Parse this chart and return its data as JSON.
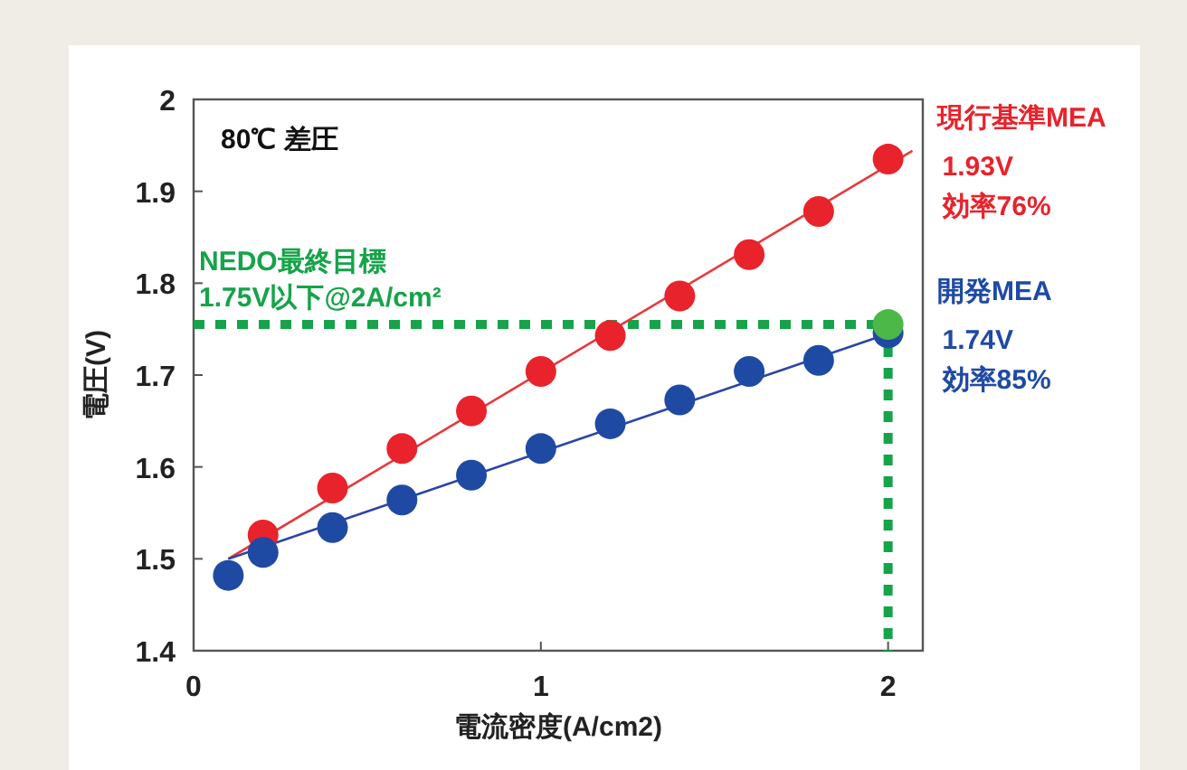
{
  "chart_data": {
    "type": "scatter",
    "xlabel": "電流密度(A/cm2)",
    "ylabel": "電圧(V)",
    "xlim": [
      0,
      2.1
    ],
    "xticks": [
      0,
      1,
      2
    ],
    "ylim": [
      1.4,
      2.0
    ],
    "yticks": [
      1.4,
      1.5,
      1.6,
      1.7,
      1.8,
      1.9,
      2
    ],
    "grid": false,
    "marker": "circle",
    "series": [
      {
        "type": "line",
        "marker": "none",
        "color": "#e8383d",
        "x": [
          0.1,
          2.07
        ],
        "values": [
          1.5,
          1.944
        ]
      },
      {
        "type": "line",
        "marker": "none",
        "color": "#2a45a8",
        "x": [
          0.1,
          2.0
        ],
        "values": [
          1.5,
          1.745
        ]
      },
      {
        "name": "現行基準MEA",
        "color": "#e8232b",
        "x": [
          0.2,
          0.4,
          0.6,
          0.8,
          1.0,
          1.2,
          1.4,
          1.6,
          1.8,
          2.0
        ],
        "values": [
          1.526,
          1.577,
          1.62,
          1.661,
          1.704,
          1.743,
          1.786,
          1.831,
          1.878,
          1.935
        ]
      },
      {
        "name": "開発MEA",
        "color": "#1f4aa3",
        "x": [
          0.1,
          0.2,
          0.4,
          0.6,
          0.8,
          1.0,
          1.2,
          1.4,
          1.6,
          1.8,
          2.0
        ],
        "values": [
          1.482,
          1.507,
          1.534,
          1.564,
          1.591,
          1.62,
          1.647,
          1.673,
          1.704,
          1.716,
          1.746
        ]
      },
      {
        "color": "#4cb847",
        "x": [
          2.0
        ],
        "values": [
          1.755
        ]
      }
    ],
    "ref_lines": [
      {
        "axis": "y",
        "value": 1.755,
        "label": "NEDO最終目標\n1.75V以下@2A/cm²",
        "color": "#16a34a",
        "line_style": "dotted"
      },
      {
        "axis": "x",
        "value": 2,
        "color": "#16a34a",
        "line_style": "dotted"
      }
    ],
    "annotations": [
      "80℃ 差圧",
      {
        "text": "1.93V\n効率76%",
        "x": 2,
        "y": 1.935
      },
      {
        "text": "1.74V\n効率85%",
        "x": 2,
        "y": 1.746
      }
    ]
  }
}
